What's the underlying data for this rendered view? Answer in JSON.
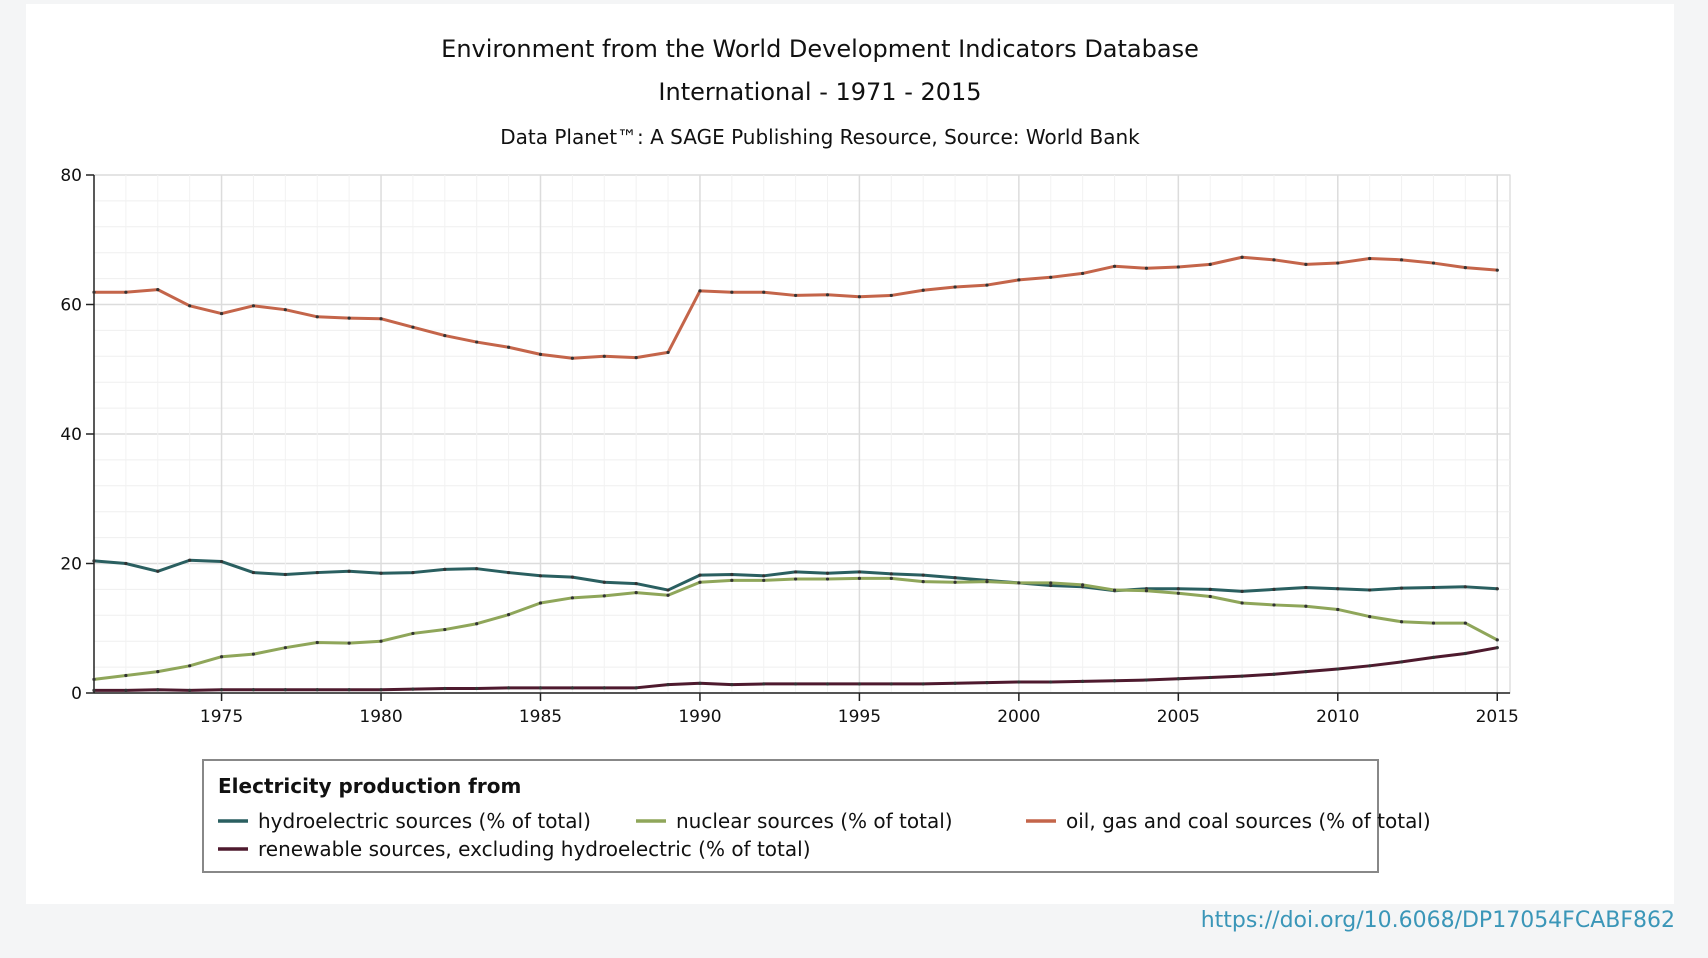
{
  "footer": {
    "doi_link": "https://doi.org/10.6068/DP17054FCABF862"
  },
  "chart_data": {
    "type": "line",
    "title": "Environment from the World Development Indicators Database",
    "subtitle": "International - 1971 - 2015",
    "source": "Data Planet™: A SAGE Publishing Resource, Source: World Bank",
    "xlabel": "",
    "ylabel": "",
    "xlim": [
      1971,
      2015.4
    ],
    "ylim": [
      0,
      80
    ],
    "y_ticks": [
      "0",
      "20",
      "40",
      "60",
      "80"
    ],
    "x_ticks": [
      "1975",
      "1980",
      "1985",
      "1990",
      "1995",
      "2000",
      "2005",
      "2010",
      "2015"
    ],
    "grid": true,
    "x": [
      1971,
      1972,
      1973,
      1974,
      1975,
      1976,
      1977,
      1978,
      1979,
      1980,
      1981,
      1982,
      1983,
      1984,
      1985,
      1986,
      1987,
      1988,
      1989,
      1990,
      1991,
      1992,
      1993,
      1994,
      1995,
      1996,
      1997,
      1998,
      1999,
      2000,
      2001,
      2002,
      2003,
      2004,
      2005,
      2006,
      2007,
      2008,
      2009,
      2010,
      2011,
      2012,
      2013,
      2014,
      2015
    ],
    "legend": {
      "title": "Electricity production from",
      "position": "bottom"
    },
    "series": [
      {
        "name": "hydroelectric sources (% of total)",
        "color": "#2a5f60",
        "values": [
          20.4,
          20.0,
          18.8,
          20.5,
          20.3,
          18.6,
          18.3,
          18.6,
          18.8,
          18.5,
          18.6,
          19.1,
          19.2,
          18.6,
          18.1,
          17.9,
          17.1,
          16.9,
          15.9,
          18.2,
          18.3,
          18.1,
          18.7,
          18.5,
          18.7,
          18.4,
          18.2,
          17.8,
          17.4,
          17.0,
          16.6,
          16.4,
          15.8,
          16.1,
          16.1,
          16.0,
          15.7,
          16.0,
          16.3,
          16.1,
          15.9,
          16.2,
          16.3,
          16.4,
          16.1
        ]
      },
      {
        "name": "nuclear sources (% of total)",
        "color": "#8fa65a",
        "values": [
          2.1,
          2.7,
          3.3,
          4.2,
          5.6,
          6.0,
          7.0,
          7.8,
          7.7,
          8.0,
          9.2,
          9.8,
          10.7,
          12.1,
          13.9,
          14.7,
          15.0,
          15.5,
          15.1,
          17.1,
          17.4,
          17.4,
          17.6,
          17.6,
          17.7,
          17.7,
          17.2,
          17.1,
          17.2,
          17.0,
          17.0,
          16.7,
          15.9,
          15.8,
          15.4,
          14.9,
          13.9,
          13.6,
          13.4,
          12.9,
          11.8,
          11.0,
          10.8,
          10.8,
          8.2
        ]
      },
      {
        "name": "oil, gas and coal sources (% of total)",
        "color": "#c4654a",
        "values": [
          61.9,
          61.9,
          62.3,
          59.8,
          58.6,
          59.8,
          59.2,
          58.1,
          57.9,
          57.8,
          56.5,
          55.2,
          54.2,
          53.4,
          52.3,
          51.7,
          52.0,
          51.8,
          52.6,
          62.1,
          61.9,
          61.9,
          61.4,
          61.5,
          61.2,
          61.4,
          62.2,
          62.7,
          63.0,
          63.8,
          64.2,
          64.8,
          65.9,
          65.6,
          65.8,
          66.2,
          67.3,
          66.9,
          66.2,
          66.4,
          67.1,
          66.9,
          66.4,
          65.7,
          65.3
        ]
      },
      {
        "name": "renewable sources, excluding hydroelectric (% of total)",
        "color": "#4e1a2e",
        "values": [
          0.4,
          0.4,
          0.5,
          0.4,
          0.5,
          0.5,
          0.5,
          0.5,
          0.5,
          0.5,
          0.6,
          0.7,
          0.7,
          0.8,
          0.8,
          0.8,
          0.8,
          0.8,
          1.3,
          1.5,
          1.3,
          1.4,
          1.4,
          1.4,
          1.4,
          1.4,
          1.4,
          1.5,
          1.6,
          1.7,
          1.7,
          1.8,
          1.9,
          2.0,
          2.2,
          2.4,
          2.6,
          2.9,
          3.3,
          3.7,
          4.2,
          4.8,
          5.5,
          6.1,
          7.0
        ]
      }
    ]
  }
}
